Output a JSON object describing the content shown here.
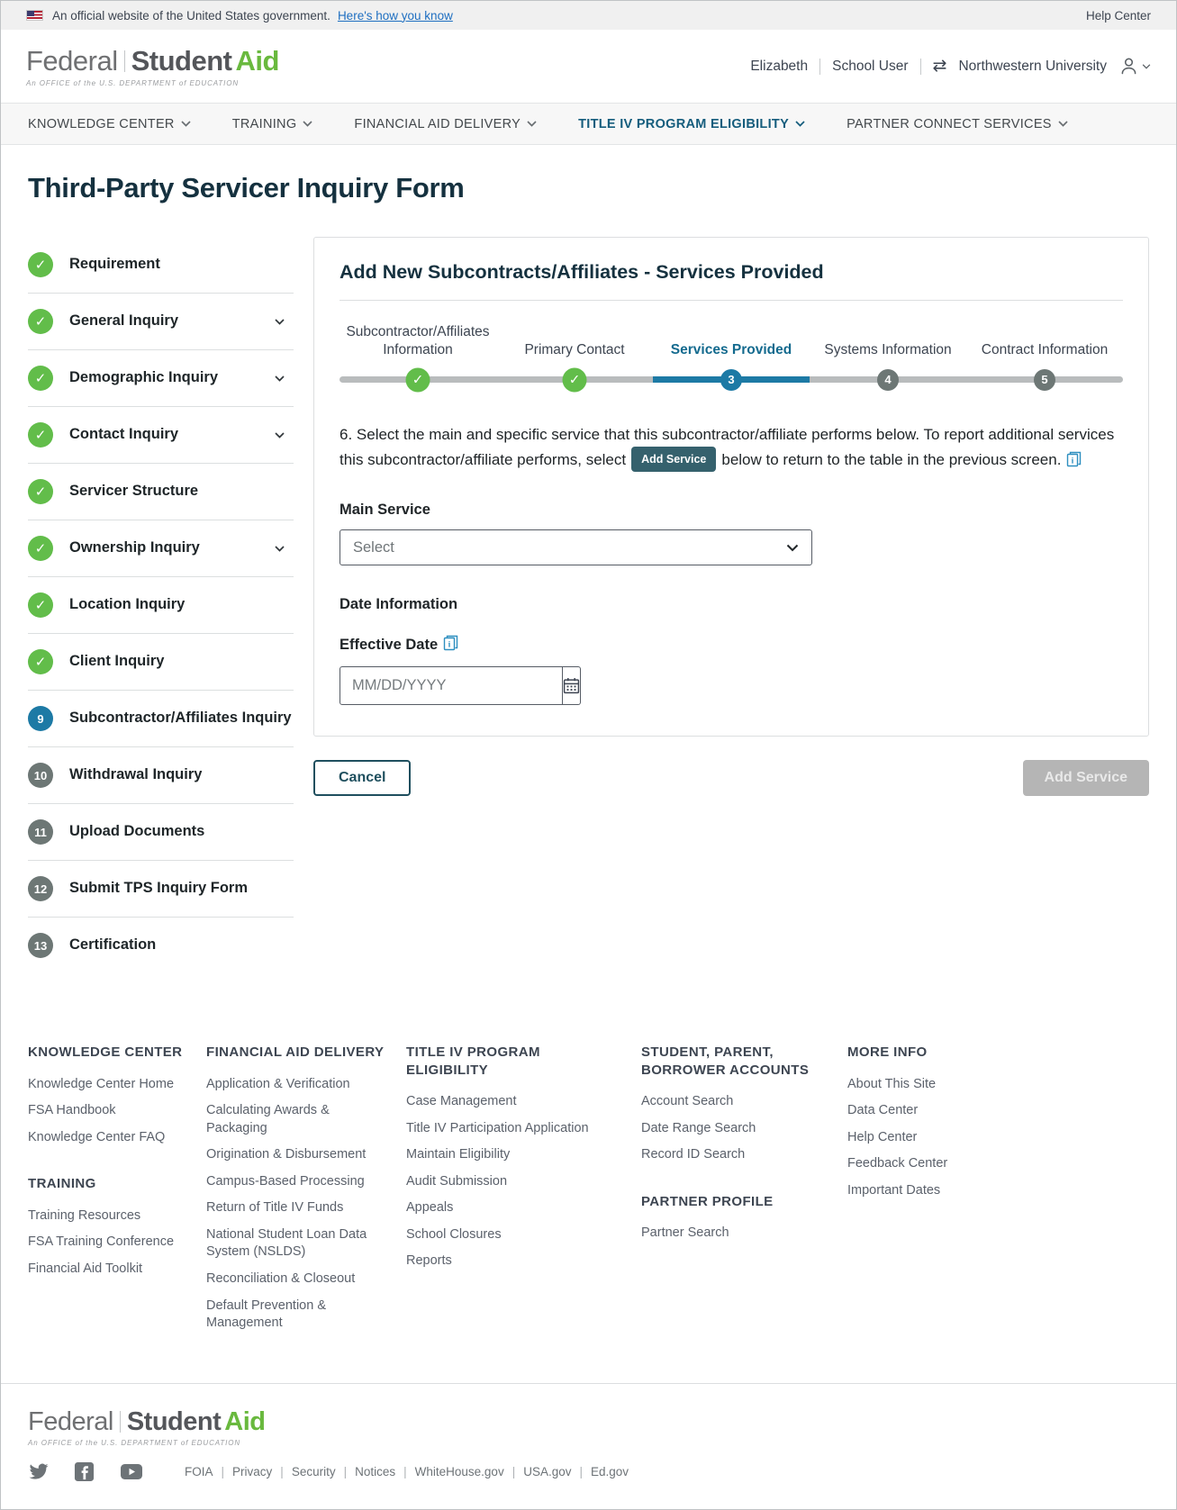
{
  "banner": {
    "text": "An official website of the United States government.",
    "link": "Here's how you know",
    "help_center": "Help Center"
  },
  "header": {
    "logo": {
      "part1": "Federal",
      "part2": "Student",
      "part3": "Aid",
      "tagline": "An OFFICE of the U.S. DEPARTMENT of EDUCATION"
    },
    "user": {
      "name": "Elizabeth",
      "role": "School User",
      "org": "Northwestern University"
    }
  },
  "nav": {
    "items": [
      {
        "label": "KNOWLEDGE CENTER",
        "active": false
      },
      {
        "label": "TRAINING",
        "active": false
      },
      {
        "label": "FINANCIAL AID DELIVERY",
        "active": false
      },
      {
        "label": "TITLE IV PROGRAM ELIGIBILITY",
        "active": true
      },
      {
        "label": "PARTNER CONNECT SERVICES",
        "active": false
      }
    ]
  },
  "page": {
    "title": "Third-Party Servicer Inquiry Form"
  },
  "sidebar": {
    "items": [
      {
        "label": "Requirement",
        "state": "done",
        "chevron": false
      },
      {
        "label": "General Inquiry",
        "state": "done",
        "chevron": true
      },
      {
        "label": "Demographic Inquiry",
        "state": "done",
        "chevron": true
      },
      {
        "label": "Contact Inquiry",
        "state": "done",
        "chevron": true
      },
      {
        "label": "Servicer Structure",
        "state": "done",
        "chevron": false
      },
      {
        "label": "Ownership Inquiry",
        "state": "done",
        "chevron": true
      },
      {
        "label": "Location Inquiry",
        "state": "done",
        "chevron": false
      },
      {
        "label": "Client Inquiry",
        "state": "done",
        "chevron": false
      },
      {
        "label": "Subcontractor/Affiliates Inquiry",
        "state": "active",
        "number": "9",
        "chevron": false
      },
      {
        "label": "Withdrawal Inquiry",
        "state": "todo",
        "number": "10",
        "chevron": false
      },
      {
        "label": "Upload Documents",
        "state": "todo",
        "number": "11",
        "chevron": false
      },
      {
        "label": "Submit TPS Inquiry Form",
        "state": "todo",
        "number": "12",
        "chevron": false
      },
      {
        "label": "Certification",
        "state": "todo",
        "number": "13",
        "chevron": false
      }
    ]
  },
  "card": {
    "title": "Add New Subcontracts/Affiliates - Services Provided",
    "stepper": [
      {
        "label": "Subcontractor/Affiliates Information",
        "state": "done"
      },
      {
        "label": "Primary Contact",
        "state": "done"
      },
      {
        "label": "Services Provided",
        "state": "active",
        "number": "3"
      },
      {
        "label": "Systems Information",
        "state": "todo",
        "number": "4"
      },
      {
        "label": "Contract Information",
        "state": "todo",
        "number": "5"
      }
    ],
    "question": {
      "before": "6. Select the main and specific service that this subcontractor/affiliate performs below. To report additional services this subcontractor/affiliate performs, select",
      "badge": "Add Service",
      "after": "below to return to the table in the previous screen."
    },
    "main_service": {
      "label": "Main Service",
      "value": "Select"
    },
    "date_section": {
      "heading": "Date Information",
      "label": "Effective Date",
      "placeholder": "MM/DD/YYYY"
    }
  },
  "actions": {
    "cancel": "Cancel",
    "add_service": "Add Service"
  },
  "footer": {
    "columns": [
      [
        {
          "heading": "KNOWLEDGE CENTER",
          "links": [
            "Knowledge Center Home",
            "FSA Handbook",
            "Knowledge Center FAQ"
          ]
        },
        {
          "heading": "TRAINING",
          "links": [
            "Training Resources",
            "FSA Training Conference",
            "Financial Aid Toolkit"
          ]
        }
      ],
      [
        {
          "heading": "FINANCIAL AID DELIVERY",
          "links": [
            "Application & Verification",
            "Calculating Awards & Packaging",
            "Origination & Disbursement",
            "Campus-Based Processing",
            "Return of Title IV Funds",
            "National Student Loan Data System (NSLDS)",
            "Reconciliation & Closeout",
            "Default Prevention & Management"
          ]
        }
      ],
      [
        {
          "heading": "TITLE IV PROGRAM ELIGIBILITY",
          "links": [
            "Case Management",
            "Title IV Participation Application",
            "Maintain Eligibility",
            "Audit Submission",
            "Appeals",
            "School Closures",
            "Reports"
          ]
        }
      ],
      [
        {
          "heading": "STUDENT, PARENT, BORROWER ACCOUNTS",
          "links": [
            "Account Search",
            "Date Range Search",
            "Record ID Search"
          ]
        },
        {
          "heading": "PARTNER PROFILE",
          "links": [
            "Partner Search"
          ]
        }
      ],
      [
        {
          "heading": "MORE INFO",
          "links": [
            "About This Site",
            "Data Center",
            "Help Center",
            "Feedback Center",
            "Important Dates"
          ]
        }
      ]
    ]
  },
  "bottom": {
    "social": [
      "twitter-icon",
      "facebook-icon",
      "youtube-icon"
    ],
    "legal_links": [
      "FOIA",
      "Privacy",
      "Security",
      "Notices",
      "WhiteHouse.gov",
      "USA.gov",
      "Ed.gov"
    ]
  },
  "colors": {
    "accent_teal": "#155d7d",
    "step_blue": "#1d7aa5",
    "done_green": "#62bd4a",
    "badge_teal": "#35616d",
    "link_blue": "#1f6fc1",
    "disabled_gray": "#b5b5b5"
  }
}
